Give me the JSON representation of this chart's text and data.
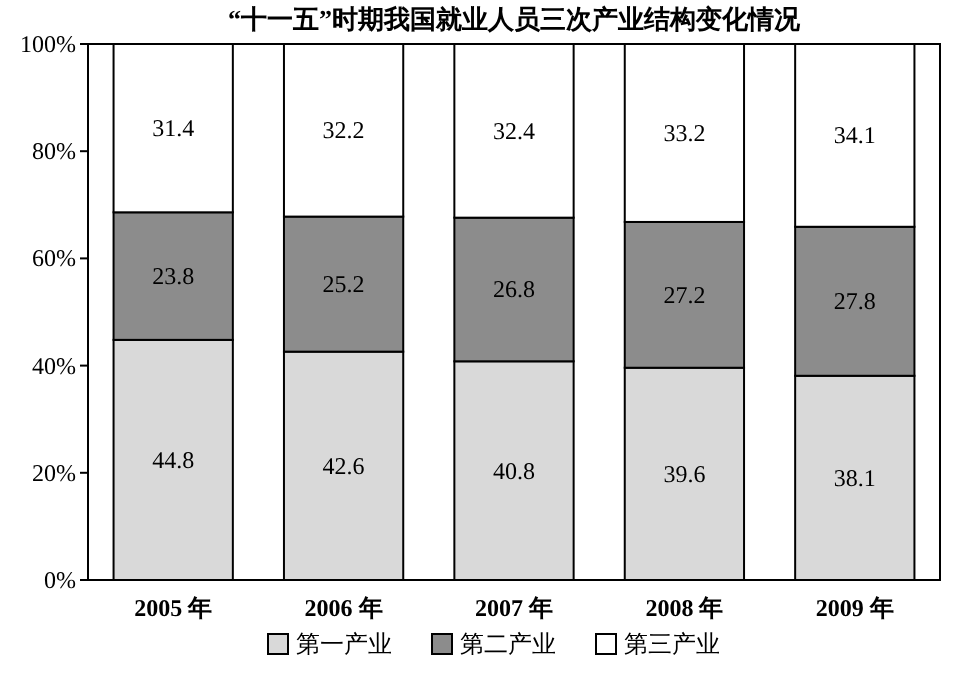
{
  "chart_data": {
    "type": "bar",
    "stacked": true,
    "data_labels": true,
    "legend": "bottom",
    "title": "“十一五”时期我国就业人员三次产业结构变化情况",
    "categories": [
      "2005 年",
      "2006 年",
      "2007 年",
      "2008 年",
      "2009 年"
    ],
    "series": [
      {
        "name": "第一产业",
        "color": "#d9d9d9",
        "values": [
          44.8,
          42.6,
          40.8,
          39.6,
          38.1
        ]
      },
      {
        "name": "第二产业",
        "color": "#8c8c8c",
        "values": [
          23.8,
          25.2,
          26.8,
          27.2,
          27.8
        ]
      },
      {
        "name": "第三产业",
        "color": "#ffffff",
        "values": [
          31.4,
          32.2,
          32.4,
          33.2,
          34.1
        ]
      }
    ],
    "ylim": [
      0,
      100
    ],
    "yticks": [
      {
        "value": 0,
        "label": "0%"
      },
      {
        "value": 20,
        "label": "20%"
      },
      {
        "value": 40,
        "label": "40%"
      },
      {
        "value": 60,
        "label": "60%"
      },
      {
        "value": 80,
        "label": "80%"
      },
      {
        "value": 100,
        "label": "100%"
      }
    ]
  }
}
